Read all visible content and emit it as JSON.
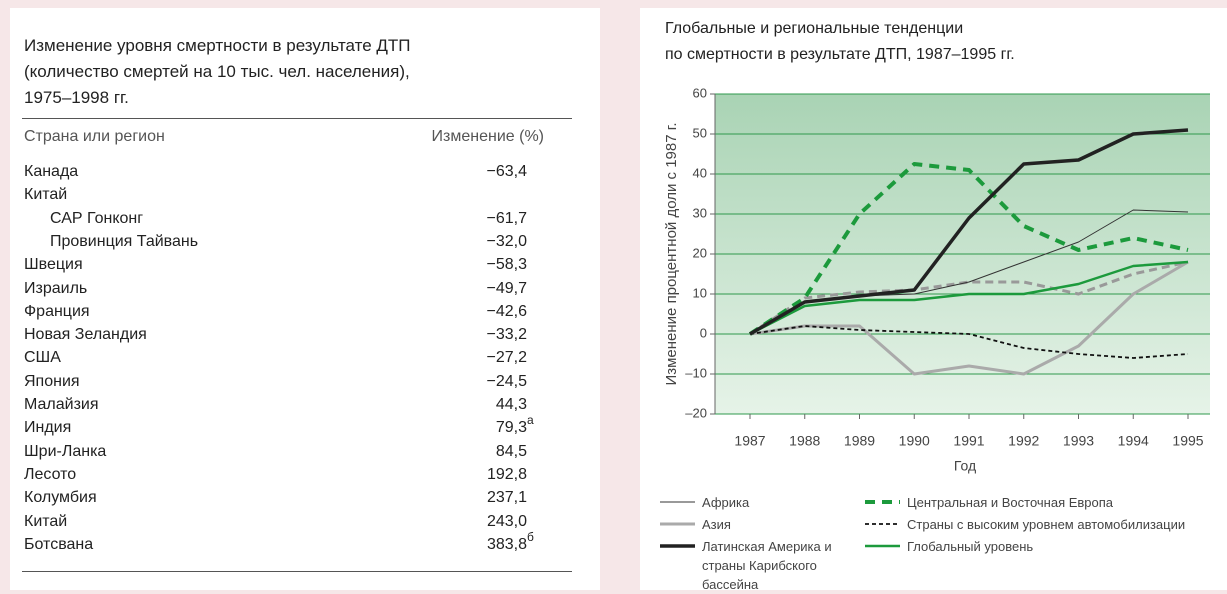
{
  "table": {
    "title": [
      "Изменение уровня смертности в результате ДТП",
      "(количество смертей на 10 тыс. чел. населения),",
      "1975–1998 гг."
    ],
    "columns": [
      "Страна или регион",
      "Изменение (%)"
    ],
    "rows": [
      {
        "name": "Канада",
        "value": "−63,4"
      },
      {
        "name": "Китай",
        "children": [
          {
            "name": "САР Гонконг",
            "value": "−61,7"
          },
          {
            "name": "Провинция Тайвань",
            "value": "−32,0"
          }
        ]
      },
      {
        "name": "Швеция",
        "value": "−58,3"
      },
      {
        "name": "Израиль",
        "value": "−49,7"
      },
      {
        "name": "Франция",
        "value": "−42,6"
      },
      {
        "name": "Новая Зеландия",
        "value": "−33,2"
      },
      {
        "name": "США",
        "value": "−27,2"
      },
      {
        "name": "Япония",
        "value": "−24,5"
      },
      {
        "name": "Малайзия",
        "value": "44,3"
      },
      {
        "name": "Индия",
        "value": "79,3",
        "note": "а"
      },
      {
        "name": "Шри-Ланка",
        "value": "84,5"
      },
      {
        "name": "Лесото",
        "value": "192,8"
      },
      {
        "name": "Колумбия",
        "value": "237,1"
      },
      {
        "name": "Китай",
        "value": "243,0"
      },
      {
        "name": "Ботсвана",
        "value": "383,8",
        "note": "б"
      }
    ]
  },
  "chart_data": {
    "type": "line",
    "title": [
      "Глобальные и региональные тенденции",
      "по смертности в результате ДТП, 1987–1995 гг."
    ],
    "x_label": "Год",
    "y_label": "Изменение процентной доли с 1987 г.",
    "categories": [
      "1987",
      "1988",
      "1989",
      "1990",
      "1991",
      "1992",
      "1993",
      "1994",
      "1995"
    ],
    "ylim": [
      -20,
      60
    ],
    "yticks": [
      {
        "value": -20,
        "label": "–20"
      },
      {
        "value": -10,
        "label": "–10"
      },
      0,
      10,
      20,
      30,
      40,
      50,
      60
    ],
    "grid": true,
    "series": [
      {
        "name": "Африка",
        "color": "#333333",
        "width": 1,
        "dash": "none",
        "values": [
          0,
          8,
          9.5,
          10,
          13,
          18,
          23,
          31,
          30.5
        ]
      },
      {
        "name": "Азия",
        "color": "#aaaaaa",
        "width": 3,
        "dash": "none",
        "values": [
          0,
          2,
          2,
          -10,
          -8,
          -10,
          -3,
          10,
          18
        ]
      },
      {
        "name": "Латинская Америка и страны Карибского бассейна",
        "color": "#222222",
        "width": 3.5,
        "dash": "none",
        "values": [
          0,
          8,
          9.5,
          11,
          29,
          42.5,
          43.5,
          50,
          51
        ]
      },
      {
        "name": "Центральная и Восточная Европа",
        "color": "#1c9a3c",
        "width": 4,
        "dash": "10,7",
        "values": [
          0,
          9,
          30,
          42.5,
          41,
          27,
          21,
          24,
          21
        ]
      },
      {
        "name": "Страны с высоким уровнем автомобилизации",
        "color": "#111111",
        "width": 1.8,
        "dash": "4,3",
        "values": [
          0,
          2,
          1,
          0.5,
          0,
          -3.5,
          -5,
          -6,
          -5
        ]
      },
      {
        "name": "Глобальный уровень",
        "color": "#1c9a3c",
        "width": 2.5,
        "dash": "none",
        "values": [
          0,
          7,
          8.5,
          8.5,
          10,
          10,
          12.5,
          17,
          18
        ]
      },
      {
        "name": null,
        "color": "#999999",
        "width": 3,
        "dash": "8,5",
        "values": [
          0,
          9,
          10.5,
          11,
          13,
          13,
          10,
          15,
          18
        ]
      }
    ]
  }
}
